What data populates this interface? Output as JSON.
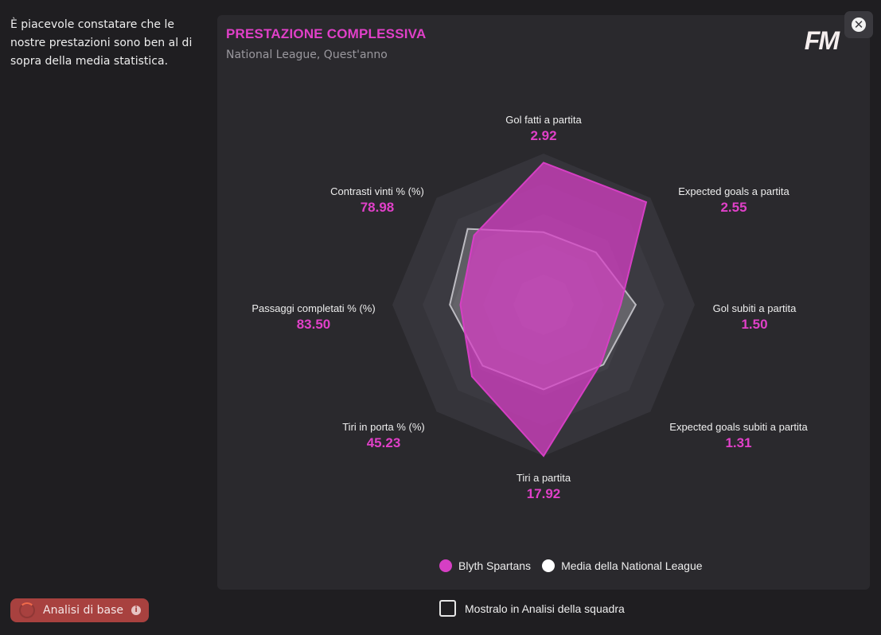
{
  "intro_text": "È piacevole constatare che le nostre prestazioni sono ben al di sopra della media statistica.",
  "panel": {
    "title": "PRESTAZIONE COMPLESSIVA",
    "subtitle": "National League, Quest'anno",
    "logo": "FM"
  },
  "axes": [
    {
      "name": "Gol fatti a partita",
      "value": "2.92"
    },
    {
      "name": "Expected goals a partita",
      "value": "2.55"
    },
    {
      "name": "Gol subiti a partita",
      "value": "1.50"
    },
    {
      "name": "Expected goals subiti a partita",
      "value": "1.31"
    },
    {
      "name": "Tiri a partita",
      "value": "17.92"
    },
    {
      "name": "Tiri in porta % (%)",
      "value": "45.23"
    },
    {
      "name": "Passaggi completati % (%)",
      "value": "83.50"
    },
    {
      "name": "Contrasti vinti % (%)",
      "value": "78.98"
    }
  ],
  "series": {
    "blyth": {
      "name": "Blyth Spartans",
      "color": "#d63fc4",
      "scale": [
        0.94,
        0.96,
        0.51,
        0.54,
        1.0,
        0.67,
        0.55,
        0.65
      ]
    },
    "league": {
      "name": "Media della National League",
      "color": "#ffffff",
      "scale": [
        0.48,
        0.49,
        0.61,
        0.56,
        0.56,
        0.57,
        0.62,
        0.71
      ]
    }
  },
  "badge": {
    "label": "Analisi di base",
    "icon": "info-icon"
  },
  "checkbox": {
    "label": "Mostralo in Analisi della squadra",
    "checked": false
  }
}
